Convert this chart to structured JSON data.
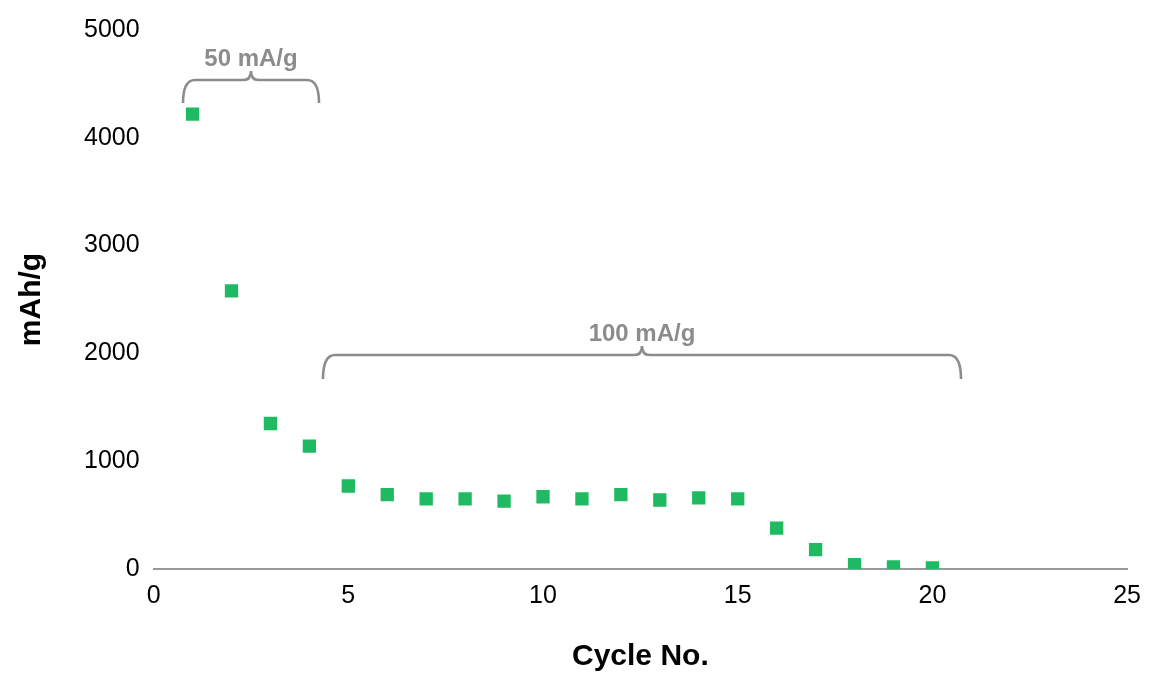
{
  "chart_data": {
    "type": "scatter",
    "xlabel": "Cycle No.",
    "ylabel": "mAh/g",
    "x": [
      1,
      2,
      3,
      4,
      5,
      6,
      7,
      8,
      9,
      10,
      11,
      12,
      13,
      14,
      15,
      16,
      17,
      18,
      19,
      20
    ],
    "series": [
      {
        "color": "#1fba62",
        "values": [
          4220,
          2580,
          1350,
          1140,
          770,
          690,
          650,
          650,
          630,
          670,
          650,
          690,
          640,
          660,
          650,
          380,
          180,
          40,
          20,
          10
        ]
      }
    ],
    "xlim": [
      0,
      25
    ],
    "xticks": [
      0,
      5,
      10,
      15,
      20,
      25
    ],
    "ylim": [
      0,
      5000
    ],
    "yticks": [
      0,
      1000,
      2000,
      3000,
      4000,
      5000
    ],
    "grid": false,
    "legend": false,
    "marker": "square",
    "annotations": [
      "50 mA/g",
      "100 mA/g"
    ]
  }
}
